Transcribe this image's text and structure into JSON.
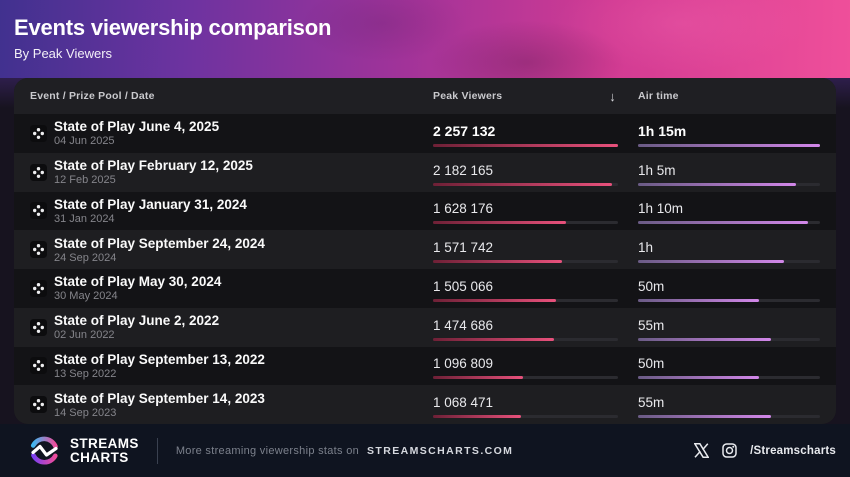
{
  "header": {
    "title": "Events viewership comparison",
    "subtitle": "By Peak Viewers"
  },
  "table": {
    "columns": {
      "event": "Event / Prize Pool / Date",
      "peak_viewers": "Peak Viewers",
      "air_time": "Air time"
    },
    "sort_icon": "↓",
    "rows": [
      {
        "name": "State of Play June 4, 2025",
        "date": "04 Jun 2025",
        "peak_viewers": "2 257 132",
        "peak_value": 2257132,
        "air_time": "1h 15m",
        "air_minutes": 75
      },
      {
        "name": "State of Play February 12, 2025",
        "date": "12 Feb 2025",
        "peak_viewers": "2 182 165",
        "peak_value": 2182165,
        "air_time": "1h 5m",
        "air_minutes": 65
      },
      {
        "name": "State of Play January 31, 2024",
        "date": "31 Jan 2024",
        "peak_viewers": "1 628 176",
        "peak_value": 1628176,
        "air_time": "1h 10m",
        "air_minutes": 70
      },
      {
        "name": "State of Play September 24, 2024",
        "date": "24 Sep 2024",
        "peak_viewers": "1 571 742",
        "peak_value": 1571742,
        "air_time": "1h",
        "air_minutes": 60
      },
      {
        "name": "State of Play May 30, 2024",
        "date": "30 May 2024",
        "peak_viewers": "1 505 066",
        "peak_value": 1505066,
        "air_time": "50m",
        "air_minutes": 50
      },
      {
        "name": "State of Play June 2, 2022",
        "date": "02 Jun 2022",
        "peak_viewers": "1 474 686",
        "peak_value": 1474686,
        "air_time": "55m",
        "air_minutes": 55
      },
      {
        "name": "State of Play September 13, 2022",
        "date": "13 Sep 2022",
        "peak_viewers": "1 096 809",
        "peak_value": 1096809,
        "air_time": "50m",
        "air_minutes": 50
      },
      {
        "name": "State of Play September 14, 2023",
        "date": "14 Sep 2023",
        "peak_viewers": "1 068 471",
        "peak_value": 1068471,
        "air_time": "55m",
        "air_minutes": 55
      }
    ]
  },
  "chart_data": {
    "type": "table",
    "title": "Events viewership comparison",
    "subtitle": "By Peak Viewers",
    "columns": [
      "Event / Prize Pool / Date",
      "Peak Viewers",
      "Air time"
    ],
    "sort": "Peak Viewers, descending",
    "events": [
      "State of Play June 4, 2025",
      "State of Play February 12, 2025",
      "State of Play January 31, 2024",
      "State of Play September 24, 2024",
      "State of Play May 30, 2024",
      "State of Play June 2, 2022",
      "State of Play September 13, 2022",
      "State of Play September 14, 2023"
    ],
    "dates": [
      "04 Jun 2025",
      "12 Feb 2025",
      "31 Jan 2024",
      "24 Sep 2024",
      "30 May 2024",
      "02 Jun 2022",
      "13 Sep 2022",
      "14 Sep 2023"
    ],
    "peak_viewers": [
      2257132,
      2182165,
      1628176,
      1571742,
      1505066,
      1474686,
      1096809,
      1068471
    ],
    "air_time_minutes": [
      75,
      65,
      70,
      60,
      50,
      55,
      50,
      55
    ],
    "air_time_labels": [
      "1h 15m",
      "1h 5m",
      "1h 10m",
      "1h",
      "50m",
      "55m",
      "50m",
      "55m"
    ]
  },
  "footer": {
    "brand_line1": "STREAMS",
    "brand_line2": "CHARTS",
    "tagline": "More streaming viewership stats on",
    "site": "STREAMSCHARTS.COM",
    "social_handle": "/Streamscharts"
  },
  "colors": {
    "hero_gradient_start": "#41318f",
    "hero_gradient_end": "#ef4f9a",
    "card_bg": "#19191c",
    "row_dark": "#131316",
    "row_light": "#1e1e21",
    "peak_bar_start": "#6e2036",
    "peak_bar_end": "#e8517c",
    "air_bar_start": "#6a5b85",
    "air_bar_end": "#d287e9",
    "footer_bg": "#0f1420"
  }
}
